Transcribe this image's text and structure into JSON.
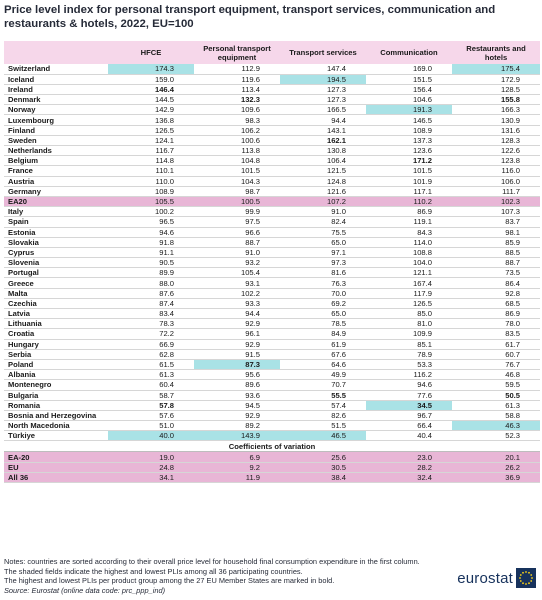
{
  "title": "Price level index for personal transport equipment, transport services, communication and restaurants & hotels, 2022, EU=100",
  "columns": [
    "HFCE",
    "Personal transport equipment",
    "Transport services",
    "Communication",
    "Restaurants and hotels"
  ],
  "rows": [
    {
      "name": "Switzerland",
      "values": [
        "174.3",
        "112.9",
        "147.4",
        "169.0",
        "175.4"
      ],
      "hl": [
        0,
        4
      ],
      "bold": []
    },
    {
      "name": "Iceland",
      "values": [
        "159.0",
        "119.6",
        "194.5",
        "151.5",
        "172.9"
      ],
      "hl": [
        2
      ],
      "bold": []
    },
    {
      "name": "Ireland",
      "values": [
        "146.4",
        "113.4",
        "127.3",
        "156.4",
        "128.5"
      ],
      "hl": [],
      "bold": [
        0
      ]
    },
    {
      "name": "Denmark",
      "values": [
        "144.5",
        "132.3",
        "127.3",
        "104.6",
        "155.8"
      ],
      "hl": [],
      "bold": [
        1,
        4
      ]
    },
    {
      "name": "Norway",
      "values": [
        "142.9",
        "109.6",
        "166.5",
        "191.3",
        "166.3"
      ],
      "hl": [
        3
      ],
      "bold": []
    },
    {
      "name": "Luxembourg",
      "values": [
        "136.8",
        "98.3",
        "94.4",
        "146.5",
        "130.9"
      ],
      "hl": [],
      "bold": []
    },
    {
      "name": "Finland",
      "values": [
        "126.5",
        "106.2",
        "143.1",
        "108.9",
        "131.6"
      ],
      "hl": [],
      "bold": []
    },
    {
      "name": "Sweden",
      "values": [
        "124.1",
        "100.6",
        "162.1",
        "137.3",
        "128.3"
      ],
      "hl": [],
      "bold": [
        2
      ]
    },
    {
      "name": "Netherlands",
      "values": [
        "116.7",
        "113.8",
        "130.8",
        "123.6",
        "122.6"
      ],
      "hl": [],
      "bold": []
    },
    {
      "name": "Belgium",
      "values": [
        "114.8",
        "104.8",
        "106.4",
        "171.2",
        "123.8"
      ],
      "hl": [],
      "bold": [
        3
      ]
    },
    {
      "name": "France",
      "values": [
        "110.1",
        "101.5",
        "121.5",
        "101.5",
        "116.0"
      ],
      "hl": [],
      "bold": []
    },
    {
      "name": "Austria",
      "values": [
        "110.0",
        "104.3",
        "124.8",
        "101.9",
        "106.0"
      ],
      "hl": [],
      "bold": []
    },
    {
      "name": "Germany",
      "values": [
        "108.9",
        "98.7",
        "121.6",
        "117.1",
        "111.7"
      ],
      "hl": [],
      "bold": []
    },
    {
      "name": "EA20",
      "values": [
        "105.5",
        "100.5",
        "107.2",
        "110.2",
        "102.3"
      ],
      "hl": [],
      "bold": [],
      "agg": true
    },
    {
      "name": "Italy",
      "values": [
        "100.2",
        "99.9",
        "91.0",
        "86.9",
        "107.3"
      ],
      "hl": [],
      "bold": []
    },
    {
      "name": "Spain",
      "values": [
        "96.5",
        "97.5",
        "82.4",
        "119.1",
        "83.7"
      ],
      "hl": [],
      "bold": []
    },
    {
      "name": "Estonia",
      "values": [
        "94.6",
        "96.6",
        "75.5",
        "84.3",
        "98.1"
      ],
      "hl": [],
      "bold": []
    },
    {
      "name": "Slovakia",
      "values": [
        "91.8",
        "88.7",
        "65.0",
        "114.0",
        "85.9"
      ],
      "hl": [],
      "bold": []
    },
    {
      "name": "Cyprus",
      "values": [
        "91.1",
        "91.0",
        "97.1",
        "108.8",
        "88.5"
      ],
      "hl": [],
      "bold": []
    },
    {
      "name": "Slovenia",
      "values": [
        "90.5",
        "93.2",
        "97.3",
        "104.0",
        "88.7"
      ],
      "hl": [],
      "bold": []
    },
    {
      "name": "Portugal",
      "values": [
        "89.9",
        "105.4",
        "81.6",
        "121.1",
        "73.5"
      ],
      "hl": [],
      "bold": []
    },
    {
      "name": "Greece",
      "values": [
        "88.0",
        "93.1",
        "76.3",
        "167.4",
        "86.4"
      ],
      "hl": [],
      "bold": []
    },
    {
      "name": "Malta",
      "values": [
        "87.6",
        "102.2",
        "70.0",
        "117.9",
        "92.8"
      ],
      "hl": [],
      "bold": []
    },
    {
      "name": "Czechia",
      "values": [
        "87.4",
        "93.3",
        "69.2",
        "126.5",
        "68.5"
      ],
      "hl": [],
      "bold": []
    },
    {
      "name": "Latvia",
      "values": [
        "83.4",
        "94.4",
        "65.0",
        "85.0",
        "86.9"
      ],
      "hl": [],
      "bold": []
    },
    {
      "name": "Lithuania",
      "values": [
        "78.3",
        "92.9",
        "78.5",
        "81.0",
        "78.0"
      ],
      "hl": [],
      "bold": []
    },
    {
      "name": "Croatia",
      "values": [
        "72.2",
        "96.1",
        "84.9",
        "109.9",
        "83.5"
      ],
      "hl": [],
      "bold": []
    },
    {
      "name": "Hungary",
      "values": [
        "66.9",
        "92.9",
        "61.9",
        "85.1",
        "61.7"
      ],
      "hl": [],
      "bold": []
    },
    {
      "name": "Serbia",
      "values": [
        "62.8",
        "91.5",
        "67.6",
        "78.9",
        "60.7"
      ],
      "hl": [],
      "bold": []
    },
    {
      "name": "Poland",
      "values": [
        "61.5",
        "87.3",
        "64.6",
        "53.3",
        "76.7"
      ],
      "hl": [
        1
      ],
      "bold": [
        1
      ]
    },
    {
      "name": "Albania",
      "values": [
        "61.3",
        "95.6",
        "49.9",
        "116.2",
        "46.8"
      ],
      "hl": [],
      "bold": []
    },
    {
      "name": "Montenegro",
      "values": [
        "60.4",
        "89.6",
        "70.7",
        "94.6",
        "59.5"
      ],
      "hl": [],
      "bold": []
    },
    {
      "name": "Bulgaria",
      "values": [
        "58.7",
        "93.6",
        "55.5",
        "77.6",
        "50.5"
      ],
      "hl": [],
      "bold": [
        2,
        4
      ]
    },
    {
      "name": "Romania",
      "values": [
        "57.8",
        "94.5",
        "57.4",
        "34.5",
        "61.3"
      ],
      "hl": [
        3
      ],
      "bold": [
        0,
        3
      ]
    },
    {
      "name": "Bosnia and Herzegovina",
      "values": [
        "57.6",
        "92.9",
        "82.6",
        "96.7",
        "58.8"
      ],
      "hl": [],
      "bold": []
    },
    {
      "name": "North Macedonia",
      "values": [
        "51.0",
        "89.2",
        "51.5",
        "66.4",
        "46.3"
      ],
      "hl": [
        4
      ],
      "bold": []
    },
    {
      "name": "Türkiye",
      "values": [
        "40.0",
        "143.9",
        "46.5",
        "40.4",
        "52.3"
      ],
      "hl": [
        0,
        1,
        2
      ],
      "bold": []
    }
  ],
  "cov_title": "Coefficients of variation",
  "cov_rows": [
    {
      "name": "EA-20",
      "values": [
        "19.0",
        "6.9",
        "25.6",
        "23.0",
        "20.1"
      ]
    },
    {
      "name": "EU",
      "values": [
        "24.8",
        "9.2",
        "30.5",
        "28.2",
        "26.2"
      ]
    },
    {
      "name": "All 36",
      "values": [
        "34.1",
        "11.9",
        "38.4",
        "32.4",
        "36.9"
      ]
    }
  ],
  "notes": [
    "Notes: countries are sorted according to their overall price level for household final consumption expenditure in the first column.",
    "The shaded fields indicate the highest and lowest PLIs among all 36 participating countries.",
    "The highest and lowest PLIs per product group among the 27 EU Member States are marked in bold."
  ],
  "source": "Source: Eurostat (online data code: prc_ppp_ind)",
  "logo_text": "eurostat",
  "colors": {
    "header": "#f6d7ea",
    "aggregate": "#e8b6d6",
    "highlight": "#a9e2e6",
    "title": "#262b38"
  }
}
